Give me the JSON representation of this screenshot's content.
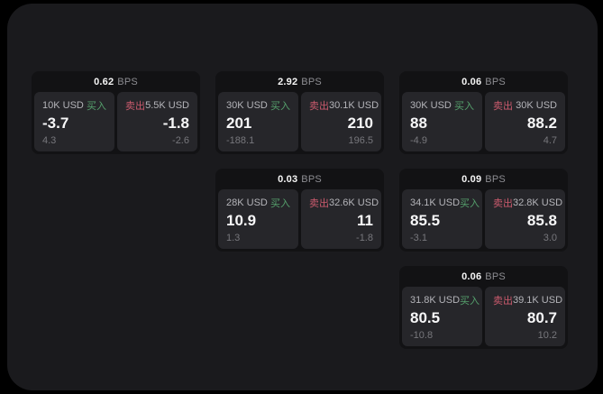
{
  "theme": {
    "outer_bg": "#000000",
    "container_bg": "#1a1a1d",
    "card_bg": "#121214",
    "panel_bg": "#26262a",
    "title_color": "#f5f5f5",
    "unit_color": "#8e8e93",
    "amount_color": "#b4b4b9",
    "buy_color": "#55a06c",
    "sell_color": "#cb5a6d",
    "value_color": "#f7f7f8",
    "sub_value_color": "#77777c"
  },
  "labels": {
    "unit": "BPS",
    "buy": "买入",
    "sell": "卖出"
  },
  "cards": [
    {
      "row": 1,
      "col": 1,
      "bps": "0.62",
      "buy": {
        "amount": "10K USD",
        "value": "-3.7",
        "sub": "4.3"
      },
      "sell": {
        "amount": "5.5K USD",
        "value": "-1.8",
        "sub": "-2.6"
      }
    },
    {
      "row": 1,
      "col": 2,
      "bps": "2.92",
      "buy": {
        "amount": "30K USD",
        "value": "201",
        "sub": "-188.1"
      },
      "sell": {
        "amount": "30.1K USD",
        "value": "210",
        "sub": "196.5"
      }
    },
    {
      "row": 1,
      "col": 3,
      "bps": "0.06",
      "buy": {
        "amount": "30K USD",
        "value": "88",
        "sub": "-4.9"
      },
      "sell": {
        "amount": "30K USD",
        "value": "88.2",
        "sub": "4.7"
      }
    },
    {
      "row": 2,
      "col": 2,
      "bps": "0.03",
      "buy": {
        "amount": "28K USD",
        "value": "10.9",
        "sub": "1.3"
      },
      "sell": {
        "amount": "32.6K USD",
        "value": "11",
        "sub": "-1.8"
      }
    },
    {
      "row": 2,
      "col": 3,
      "bps": "0.09",
      "buy": {
        "amount": "34.1K USD",
        "value": "85.5",
        "sub": "-3.1"
      },
      "sell": {
        "amount": "32.8K USD",
        "value": "85.8",
        "sub": "3.0"
      }
    },
    {
      "row": 3,
      "col": 3,
      "bps": "0.06",
      "buy": {
        "amount": "31.8K USD",
        "value": "80.5",
        "sub": "-10.8"
      },
      "sell": {
        "amount": "39.1K USD",
        "value": "80.7",
        "sub": "10.2"
      }
    }
  ]
}
